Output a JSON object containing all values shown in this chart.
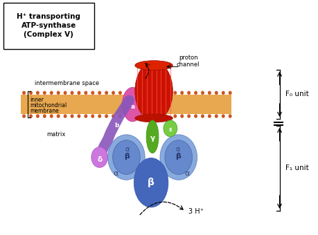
{
  "title_lines": [
    "H⁺ transporting",
    "ATP-synthase",
    "(Complex V)"
  ],
  "label_intermembrane": "intermembrane space",
  "label_inner1": "inner",
  "label_inner2": "mitochondrial",
  "label_inner3": "membrane",
  "label_matrix": "matrix",
  "label_proton_channel": "proton\nchannel",
  "label_f0": "F₀ unit",
  "label_f1": "F₁ unit",
  "label_3h": "3 H⁺",
  "mem_outer_color": "#cc5522",
  "mem_inner_color": "#e8a850",
  "proton_color": "#cc1100",
  "proton_dark": "#991100",
  "subunit_a_color": "#dd55aa",
  "subunit_b_color": "#8855bb",
  "subunit_gamma_color": "#55aa22",
  "subunit_epsilon_color": "#77cc44",
  "alpha_light": "#88aadd",
  "alpha_mid": "#6688cc",
  "beta_front": "#4466bb",
  "beta_dark": "#3355aa",
  "delta_color": "#cc77dd",
  "background": "#ffffff"
}
